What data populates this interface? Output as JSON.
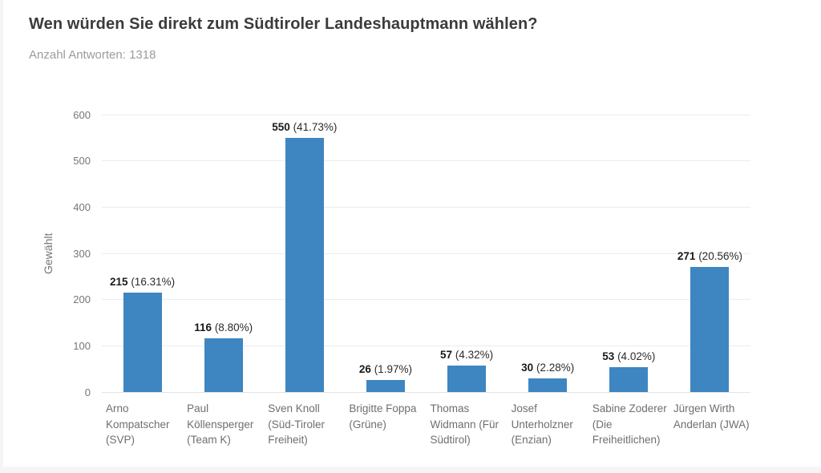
{
  "page": {
    "background_color": "#f5f5f6",
    "card_color": "#ffffff"
  },
  "header": {
    "title": "Wen würden Sie direkt zum Südtiroler Landeshauptmann wählen?",
    "answer_count_label": "Anzahl Antworten: 1318"
  },
  "chart_data": {
    "type": "bar",
    "title": "Wen würden Sie direkt zum Südtiroler Landeshauptmann wählen?",
    "subtitle": "Anzahl Antworten: 1318",
    "total_answers": 1318,
    "ylabel": "Gewählt",
    "xlabel": "",
    "ylim": [
      0,
      600
    ],
    "yticks": [
      0,
      100,
      200,
      300,
      400,
      500,
      600
    ],
    "grid": true,
    "legend": false,
    "bar_color": "#3e86c1",
    "categories": [
      "Arno Kompatscher (SVP)",
      "Paul Köllensperger (Team K)",
      "Sven Knoll (Süd-Tiroler Freiheit)",
      "Brigitte Foppa (Grüne)",
      "Thomas Widmann (Für Südtirol)",
      "Josef Unterholzner (Enzian)",
      "Sabine Zoderer (Die Freiheitlichen)",
      "Jürgen Wirth Anderlan (JWA)"
    ],
    "values": [
      215,
      116,
      550,
      26,
      57,
      30,
      53,
      271
    ],
    "bars": [
      {
        "category": "Arno Kompatscher (SVP)",
        "label_lines": "Arno\nKompatscher\n(SVP)",
        "value": 215,
        "percent_label": "(16.31%)"
      },
      {
        "category": "Paul Köllensperger (Team K)",
        "label_lines": "Paul\nKöllensperger\n(Team K)",
        "value": 116,
        "percent_label": "(8.80%)"
      },
      {
        "category": "Sven Knoll (Süd-Tiroler Freiheit)",
        "label_lines": "Sven Knoll\n(Süd-Tiroler\nFreiheit)",
        "value": 550,
        "percent_label": "(41.73%)"
      },
      {
        "category": "Brigitte Foppa (Grüne)",
        "label_lines": "Brigitte Foppa\n(Grüne)",
        "value": 26,
        "percent_label": "(1.97%)"
      },
      {
        "category": "Thomas Widmann (Für Südtirol)",
        "label_lines": "Thomas\nWidmann (Für\nSüdtirol)",
        "value": 57,
        "percent_label": "(4.32%)"
      },
      {
        "category": "Josef Unterholzner (Enzian)",
        "label_lines": "Josef\nUnterholzner\n(Enzian)",
        "value": 30,
        "percent_label": "(2.28%)"
      },
      {
        "category": "Sabine Zoderer (Die Freiheitlichen)",
        "label_lines": "Sabine Zoderer\n(Die\nFreiheitlichen)",
        "value": 53,
        "percent_label": "(4.02%)"
      },
      {
        "category": "Jürgen Wirth Anderlan (JWA)",
        "label_lines": "Jürgen Wirth\nAnderlan (JWA)",
        "value": 271,
        "percent_label": "(20.56%)"
      }
    ]
  }
}
